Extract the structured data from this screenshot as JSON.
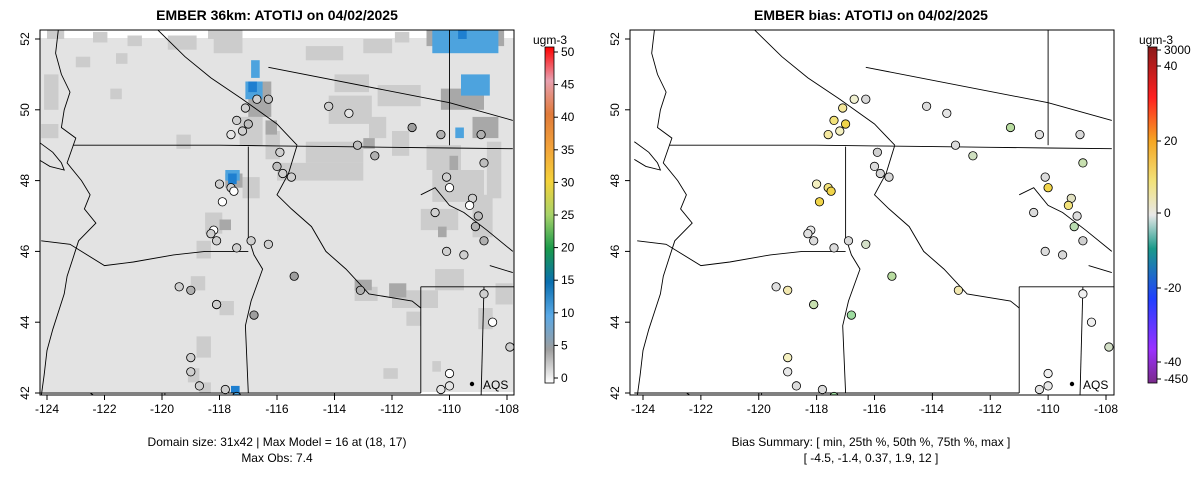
{
  "left_panel": {
    "title": "EMBER 36km: ATOTIJ on 04/02/2025",
    "legend_unit": "ugm-3",
    "legend_ticks": [
      "0",
      "5",
      "10",
      "15",
      "20",
      "25",
      "30",
      "35",
      "40",
      "45",
      "50"
    ],
    "aqs_label": "AQS",
    "caption_line1": "Domain size: 31x42 | Max Model = 16 at (18, 17)",
    "caption_line2": "Max Obs: 7.4"
  },
  "right_panel": {
    "title": "EMBER bias: ATOTIJ on 04/02/2025",
    "legend_unit": "ugm-3",
    "legend_ticks": [
      "3000",
      "40",
      "20",
      "0",
      "-20",
      "-40",
      "-450"
    ],
    "aqs_label": "AQS",
    "caption_line1": "Bias Summary: [ min, 25th %, 50th %, 75th %, max ]",
    "caption_line2": "[ -4.5,   -1.4,   0.37,   1.9,   12 ]"
  },
  "axes": {
    "x_ticks": [
      "-124",
      "-122",
      "-120",
      "-118",
      "-116",
      "-114",
      "-112",
      "-110",
      "-108"
    ],
    "y_ticks": [
      "42",
      "44",
      "46",
      "48",
      "50",
      "52"
    ],
    "lon_range": [
      -124.3,
      -107.8
    ],
    "lat_range": [
      41.9,
      52.3
    ]
  },
  "colors": {
    "ocean_field": "#e3e3e3",
    "field_light": "#cccccc",
    "field_mid": "#a8a8a8",
    "field_blue": "#4da3de",
    "field_dark_blue": "#1e7fd0"
  }
}
